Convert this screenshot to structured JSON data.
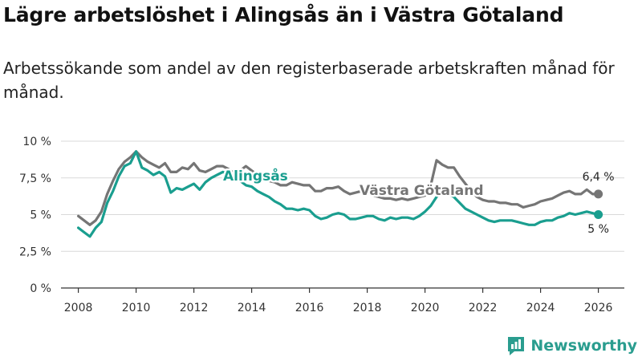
{
  "title": "Lägre arbetslöshet i Alingsås än i Västra Götaland",
  "subtitle": "Arbetssökande som andel av den registerbaserade arbetskraften månad för månad.",
  "brand": "Newsworthy",
  "colors": {
    "alingsas": "#1a9e8f",
    "vg": "#757575",
    "grid": "#d9d9d9",
    "brand": "#2a9d8f"
  },
  "chart_data": {
    "type": "line",
    "title": "Lägre arbetslöshet i Alingsås än i Västra Götaland",
    "xlabel": "",
    "ylabel": "",
    "xlim": [
      2007.4,
      2026.9
    ],
    "ylim": [
      0,
      10
    ],
    "yticks": [
      0,
      2.5,
      5,
      7.5,
      10
    ],
    "ytick_labels": [
      "0 %",
      "2,5 %",
      "5 %",
      "7,5 %",
      "10 %"
    ],
    "xticks": [
      2008,
      2010,
      2012,
      2014,
      2016,
      2018,
      2020,
      2022,
      2024,
      2026
    ],
    "xtick_labels": [
      "2008",
      "2010",
      "2012",
      "2014",
      "2016",
      "2018",
      "2020",
      "2022",
      "2024",
      "2026"
    ],
    "grid": true,
    "series": [
      {
        "name": "Västra Götaland",
        "label": "Västra Götaland",
        "end_label": "6,4 %",
        "x": [
          2008.0,
          2008.2,
          2008.4,
          2008.6,
          2008.8,
          2009.0,
          2009.2,
          2009.4,
          2009.6,
          2009.8,
          2010.0,
          2010.2,
          2010.4,
          2010.6,
          2010.8,
          2011.0,
          2011.2,
          2011.4,
          2011.6,
          2011.8,
          2012.0,
          2012.2,
          2012.4,
          2012.6,
          2012.8,
          2013.0,
          2013.2,
          2013.4,
          2013.6,
          2013.8,
          2014.0,
          2014.2,
          2014.4,
          2014.6,
          2014.8,
          2015.0,
          2015.2,
          2015.4,
          2015.6,
          2015.8,
          2016.0,
          2016.2,
          2016.4,
          2016.6,
          2016.8,
          2017.0,
          2017.2,
          2017.4,
          2017.6,
          2017.8,
          2018.0,
          2018.2,
          2018.4,
          2018.6,
          2018.8,
          2019.0,
          2019.2,
          2019.4,
          2019.6,
          2019.8,
          2020.0,
          2020.2,
          2020.4,
          2020.6,
          2020.8,
          2021.0,
          2021.2,
          2021.4,
          2021.6,
          2021.8,
          2022.0,
          2022.2,
          2022.4,
          2022.6,
          2022.8,
          2023.0,
          2023.2,
          2023.4,
          2023.6,
          2023.8,
          2024.0,
          2024.2,
          2024.4,
          2024.6,
          2024.8,
          2025.0,
          2025.2,
          2025.4,
          2025.6,
          2025.8,
          2026.0
        ],
        "values": [
          4.9,
          4.6,
          4.3,
          4.6,
          5.2,
          6.4,
          7.3,
          8.1,
          8.6,
          8.9,
          9.3,
          8.9,
          8.6,
          8.4,
          8.2,
          8.5,
          7.9,
          7.9,
          8.2,
          8.1,
          8.5,
          8.0,
          7.9,
          8.1,
          8.3,
          8.3,
          8.1,
          7.8,
          8.0,
          8.3,
          8.0,
          7.7,
          7.5,
          7.3,
          7.2,
          7.0,
          7.0,
          7.2,
          7.1,
          7.0,
          7.0,
          6.6,
          6.6,
          6.8,
          6.8,
          6.9,
          6.6,
          6.4,
          6.5,
          6.6,
          6.5,
          6.3,
          6.2,
          6.1,
          6.1,
          6.0,
          6.1,
          6.0,
          6.1,
          6.2,
          6.3,
          7.0,
          8.7,
          8.4,
          8.2,
          8.2,
          7.6,
          7.1,
          6.6,
          6.2,
          6.0,
          5.9,
          5.9,
          5.8,
          5.8,
          5.7,
          5.7,
          5.5,
          5.6,
          5.7,
          5.9,
          6.0,
          6.1,
          6.3,
          6.5,
          6.6,
          6.4,
          6.4,
          6.7,
          6.4,
          6.4
        ]
      },
      {
        "name": "Alingsås",
        "label": "Alingsås",
        "end_label": "5 %",
        "x": [
          2008.0,
          2008.2,
          2008.4,
          2008.6,
          2008.8,
          2009.0,
          2009.2,
          2009.4,
          2009.6,
          2009.8,
          2010.0,
          2010.2,
          2010.4,
          2010.6,
          2010.8,
          2011.0,
          2011.2,
          2011.4,
          2011.6,
          2011.8,
          2012.0,
          2012.2,
          2012.4,
          2012.6,
          2012.8,
          2013.0,
          2013.2,
          2013.4,
          2013.6,
          2013.8,
          2014.0,
          2014.2,
          2014.4,
          2014.6,
          2014.8,
          2015.0,
          2015.2,
          2015.4,
          2015.6,
          2015.8,
          2016.0,
          2016.2,
          2016.4,
          2016.6,
          2016.8,
          2017.0,
          2017.2,
          2017.4,
          2017.6,
          2017.8,
          2018.0,
          2018.2,
          2018.4,
          2018.6,
          2018.8,
          2019.0,
          2019.2,
          2019.4,
          2019.6,
          2019.8,
          2020.0,
          2020.2,
          2020.4,
          2020.6,
          2020.8,
          2021.0,
          2021.2,
          2021.4,
          2021.6,
          2021.8,
          2022.0,
          2022.2,
          2022.4,
          2022.6,
          2022.8,
          2023.0,
          2023.2,
          2023.4,
          2023.6,
          2023.8,
          2024.0,
          2024.2,
          2024.4,
          2024.6,
          2024.8,
          2025.0,
          2025.2,
          2025.4,
          2025.6,
          2025.8,
          2026.0
        ],
        "values": [
          4.1,
          3.8,
          3.5,
          4.1,
          4.5,
          5.8,
          6.6,
          7.6,
          8.3,
          8.5,
          9.3,
          8.2,
          8.0,
          7.7,
          7.9,
          7.6,
          6.5,
          6.8,
          6.7,
          6.9,
          7.1,
          6.7,
          7.2,
          7.5,
          7.7,
          7.9,
          7.8,
          7.5,
          7.3,
          7.0,
          6.9,
          6.6,
          6.4,
          6.2,
          5.9,
          5.7,
          5.4,
          5.4,
          5.3,
          5.4,
          5.3,
          4.9,
          4.7,
          4.8,
          5.0,
          5.1,
          5.0,
          4.7,
          4.7,
          4.8,
          4.9,
          4.9,
          4.7,
          4.6,
          4.8,
          4.7,
          4.8,
          4.8,
          4.7,
          4.9,
          5.2,
          5.6,
          6.2,
          6.6,
          6.4,
          6.2,
          5.8,
          5.4,
          5.2,
          5.0,
          4.8,
          4.6,
          4.5,
          4.6,
          4.6,
          4.6,
          4.5,
          4.4,
          4.3,
          4.3,
          4.5,
          4.6,
          4.6,
          4.8,
          4.9,
          5.1,
          5.0,
          5.1,
          5.2,
          5.1,
          5.0
        ]
      }
    ]
  }
}
